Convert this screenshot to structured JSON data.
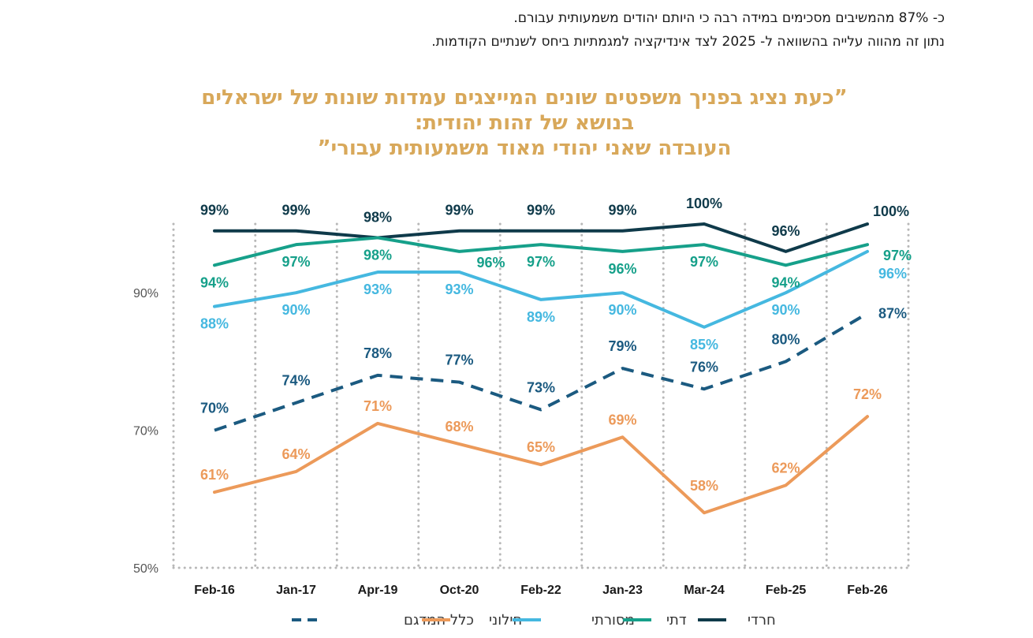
{
  "intro": {
    "line1": "כ- 87% מהמשיבים מסכימים במידה רבה כי היותם יהודים משמעותית עבורם.",
    "line2": "נתון זה מהווה עלייה בהשוואה ל- 2025 לצד אינדיקציה למגמתיות ביחס לשנתיים הקודמות."
  },
  "title": {
    "line1": "”כעת נציג בפניך משפטים שונים המייצגים עמדות שונות של ישראלים",
    "line2": "בנושא של זהות יהודית:",
    "line3": "העובדה שאני יהודי מאוד משמעותית עבורי”"
  },
  "chart_data": {
    "type": "line",
    "categories": [
      "Feb-16",
      "Jan-17",
      "Apr-19",
      "Oct-20",
      "Feb-22",
      "Jan-23",
      "Mar-24",
      "Feb-25",
      "Feb-26"
    ],
    "ylim": [
      50,
      100
    ],
    "yticks": [
      50,
      70,
      90
    ],
    "ytick_labels": [
      "50%",
      "70%",
      "90%"
    ],
    "grid": "vertical-dotted",
    "legend_position": "bottom",
    "series": [
      {
        "name": "חרדי",
        "color": "#0f3a4a",
        "dash": "solid",
        "values": [
          99,
          99,
          98,
          99,
          99,
          99,
          100,
          96,
          100
        ]
      },
      {
        "name": "דתי",
        "color": "#16a08a",
        "dash": "solid",
        "values": [
          94,
          97,
          98,
          96,
          97,
          96,
          97,
          94,
          97
        ]
      },
      {
        "name": "מסורתי",
        "color": "#45b8e0",
        "dash": "solid",
        "values": [
          88,
          90,
          93,
          93,
          89,
          90,
          85,
          90,
          96
        ]
      },
      {
        "name": "כלל המדגם",
        "color": "#1b5a80",
        "dash": "dashed",
        "values": [
          70,
          74,
          78,
          77,
          73,
          79,
          76,
          80,
          87
        ]
      },
      {
        "name": "חילוני",
        "color": "#ec9a5a",
        "dash": "solid",
        "values": [
          61,
          64,
          71,
          68,
          65,
          69,
          58,
          62,
          72
        ]
      }
    ],
    "legend_order": [
      "כלל המדגם",
      "חילוני",
      "מסורתי",
      "דתי",
      "חרדי"
    ]
  }
}
